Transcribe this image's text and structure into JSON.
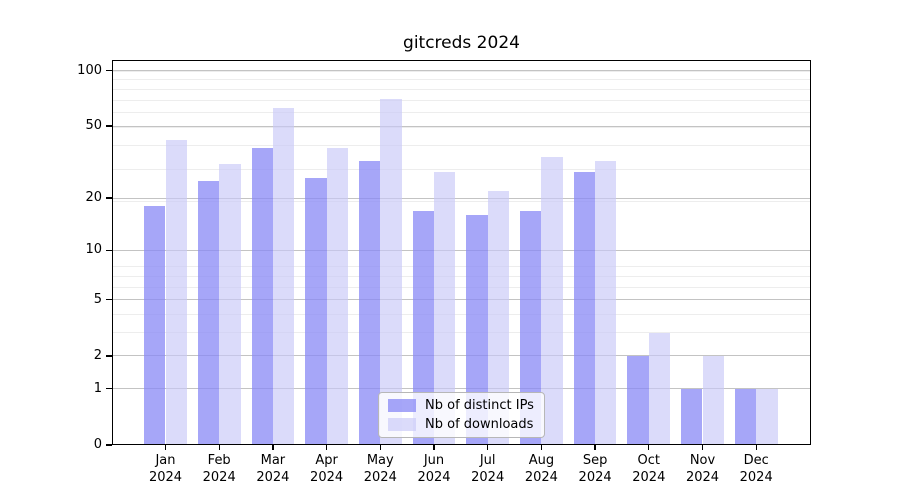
{
  "title": "gitcreds 2024",
  "chart_data": {
    "type": "bar",
    "title": "gitcreds 2024",
    "xlabel": "",
    "ylabel": "",
    "yscale": "log1p (log10 of 1+value)",
    "categories": [
      "Jan 2024",
      "Feb 2024",
      "Mar 2024",
      "Apr 2024",
      "May 2024",
      "Jun 2024",
      "Jul 2024",
      "Aug 2024",
      "Sep 2024",
      "Oct 2024",
      "Nov 2024",
      "Dec 2024"
    ],
    "series": [
      {
        "name": "Nb of distinct IPs",
        "color": "#a8a8f7",
        "fill": "rgba(136,136,245,0.75)",
        "values": [
          18,
          25,
          38,
          26,
          32,
          17,
          16,
          17,
          28,
          2,
          1,
          1
        ]
      },
      {
        "name": "Nb of downloads",
        "color": "#d9d9fa",
        "fill": "rgba(200,200,248,0.65)",
        "values": [
          42,
          31,
          63,
          38,
          70,
          28,
          22,
          34,
          32,
          3,
          2,
          1
        ]
      }
    ],
    "yticks": [
      100,
      50,
      20,
      10,
      5,
      2,
      1,
      0
    ],
    "ytick_labels": [
      "100",
      "50",
      "20",
      "10",
      "5",
      "2",
      "1",
      "0"
    ],
    "ylim": [
      0,
      113
    ],
    "grid": true,
    "legend_position": "lower center, inside plot"
  }
}
